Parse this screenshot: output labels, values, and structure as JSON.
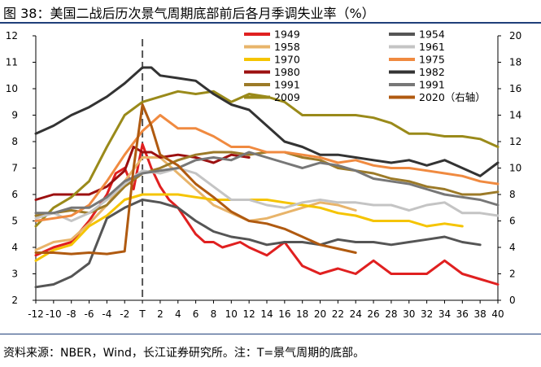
{
  "figure": {
    "title": "图 38：美国二战后历次景气周期底部前后各月季调失业率（%）",
    "source": "资料来源：NBER，Wind，长江证券研究所。注：T=景气周期的底部。"
  },
  "chart_data": {
    "type": "line",
    "x_tick_labels": [
      "-12",
      "-10",
      "-8",
      "-6",
      "-4",
      "-2",
      "T",
      "2",
      "4",
      "6",
      "8",
      "10",
      "12",
      "14",
      "16",
      "18",
      "20",
      "22",
      "24",
      "26",
      "28",
      "30",
      "32",
      "34",
      "36",
      "38",
      "40"
    ],
    "x_range": [
      -12,
      40
    ],
    "y_left": {
      "range": [
        2,
        12
      ],
      "ticks": [
        "2",
        "3",
        "4",
        "5",
        "6",
        "7",
        "8",
        "9",
        "10",
        "11",
        "12"
      ]
    },
    "y_right": {
      "range": [
        0,
        20
      ],
      "ticks": [
        "0",
        "2",
        "4",
        "6",
        "8",
        "10",
        "12",
        "14",
        "16",
        "18",
        "20"
      ]
    },
    "trough_marker_x": 0,
    "series": [
      {
        "name": "1949",
        "color": "#e02020",
        "axis": "left",
        "x": [
          -12,
          -10,
          -8,
          -6,
          -4,
          -3,
          -2,
          -1,
          0,
          1,
          2,
          3,
          4,
          5,
          6,
          7,
          8,
          9,
          10,
          11,
          12,
          14,
          16,
          18,
          20,
          22,
          24,
          26,
          28,
          30,
          32,
          34,
          36,
          38,
          40
        ],
        "y": [
          3.7,
          4.0,
          4.2,
          5.0,
          6.0,
          6.8,
          7.0,
          6.2,
          7.9,
          7.0,
          6.3,
          5.8,
          5.5,
          5.0,
          4.5,
          4.2,
          4.2,
          4.0,
          4.1,
          4.2,
          4.0,
          3.7,
          4.2,
          3.3,
          3.0,
          3.2,
          3.0,
          3.5,
          3.0,
          3.0,
          3.0,
          3.5,
          3.0,
          2.8,
          2.6
        ]
      },
      {
        "name": "1958",
        "color": "#e8b46a",
        "axis": "left",
        "x": [
          -12,
          -10,
          -8,
          -6,
          -4,
          -2,
          0,
          2,
          4,
          6,
          8,
          10,
          12,
          14,
          16,
          18,
          20,
          22,
          24
        ],
        "y": [
          3.9,
          4.2,
          4.3,
          4.9,
          5.6,
          6.5,
          7.4,
          7.4,
          6.8,
          6.2,
          5.6,
          5.3,
          5.0,
          5.1,
          5.3,
          5.5,
          5.7,
          5.6,
          5.4
        ]
      },
      {
        "name": "1970",
        "color": "#f5c400",
        "axis": "left",
        "x": [
          -12,
          -10,
          -8,
          -6,
          -4,
          -2,
          0,
          2,
          4,
          6,
          8,
          10,
          12,
          14,
          16,
          18,
          20,
          22,
          24,
          26,
          28,
          30,
          32,
          34,
          36
        ],
        "y": [
          3.5,
          3.9,
          4.1,
          4.8,
          5.2,
          5.8,
          6.0,
          6.0,
          6.0,
          5.9,
          5.8,
          5.8,
          5.8,
          5.8,
          5.7,
          5.6,
          5.5,
          5.3,
          5.2,
          5.0,
          5.0,
          5.0,
          4.8,
          4.9,
          4.8
        ]
      },
      {
        "name": "1980",
        "color": "#9c1010",
        "axis": "left",
        "x": [
          -12,
          -10,
          -8,
          -6,
          -4,
          -2,
          -1,
          0,
          1,
          2,
          4,
          6,
          8,
          10,
          12
        ],
        "y": [
          5.8,
          6.0,
          6.0,
          6.0,
          6.3,
          6.9,
          7.8,
          7.6,
          7.6,
          7.4,
          7.5,
          7.4,
          7.2,
          7.5,
          7.4
        ]
      },
      {
        "name": "1991",
        "color": "#9c7a28",
        "axis": "left",
        "x": [
          -12,
          -10,
          -8,
          -6,
          -4,
          -2,
          0,
          2,
          4,
          6,
          8,
          10,
          12,
          14,
          16,
          18,
          20,
          22,
          24,
          26,
          28,
          30,
          32,
          34,
          36,
          38,
          40
        ],
        "y": [
          5.2,
          5.3,
          5.4,
          5.3,
          5.6,
          6.3,
          6.8,
          7.0,
          7.3,
          7.5,
          7.6,
          7.6,
          7.5,
          7.6,
          7.6,
          7.4,
          7.3,
          7.0,
          6.9,
          6.8,
          6.6,
          6.5,
          6.3,
          6.2,
          6.0,
          6.0,
          6.1
        ]
      },
      {
        "name": "2009",
        "color": "#9a8a1a",
        "axis": "left",
        "x": [
          -12,
          -10,
          -8,
          -6,
          -4,
          -2,
          0,
          2,
          4,
          6,
          8,
          10,
          12,
          14,
          16,
          18,
          20,
          22,
          24,
          26,
          28,
          30,
          32,
          34,
          36,
          38,
          40
        ],
        "y": [
          4.8,
          5.5,
          5.9,
          6.5,
          7.8,
          9.0,
          9.5,
          9.7,
          9.9,
          9.8,
          9.9,
          9.5,
          9.8,
          9.7,
          9.5,
          9.0,
          9.0,
          9.0,
          9.0,
          8.9,
          8.7,
          8.3,
          8.3,
          8.2,
          8.2,
          8.1,
          7.8
        ]
      },
      {
        "name": "1954",
        "color": "#555555",
        "axis": "left",
        "x": [
          -12,
          -10,
          -8,
          -6,
          -4,
          -2,
          0,
          2,
          4,
          6,
          8,
          10,
          12,
          14,
          16,
          18,
          20,
          22,
          24,
          26,
          28,
          30,
          32,
          34,
          36,
          38
        ],
        "y": [
          2.5,
          2.6,
          2.9,
          3.4,
          5.1,
          5.5,
          5.8,
          5.7,
          5.5,
          5.0,
          4.6,
          4.4,
          4.3,
          4.1,
          4.2,
          4.2,
          4.1,
          4.3,
          4.2,
          4.2,
          4.1,
          4.2,
          4.3,
          4.4,
          4.2,
          4.1
        ]
      },
      {
        "name": "1961",
        "color": "#c4c4c4",
        "axis": "left",
        "x": [
          -12,
          -10,
          -8,
          -6,
          -4,
          -2,
          0,
          2,
          4,
          6,
          8,
          10,
          12,
          14,
          16,
          18,
          20,
          22,
          24,
          26,
          28,
          30,
          32,
          34,
          36,
          38,
          40
        ],
        "y": [
          5.1,
          5.3,
          5.0,
          5.3,
          5.8,
          6.4,
          6.9,
          6.8,
          7.0,
          6.8,
          6.3,
          5.8,
          5.8,
          5.6,
          5.5,
          5.7,
          5.8,
          5.7,
          5.7,
          5.6,
          5.6,
          5.4,
          5.6,
          5.7,
          5.3,
          5.3,
          5.2
        ]
      },
      {
        "name": "1975",
        "color": "#f08a40",
        "axis": "left",
        "x": [
          -12,
          -10,
          -8,
          -6,
          -4,
          -2,
          0,
          2,
          4,
          6,
          8,
          10,
          12,
          14,
          16,
          18,
          20,
          22,
          24,
          26,
          28,
          30,
          32,
          34,
          36,
          38,
          40
        ],
        "y": [
          5.0,
          5.1,
          5.2,
          5.6,
          6.5,
          7.5,
          8.4,
          9.0,
          8.5,
          8.5,
          8.2,
          7.8,
          7.8,
          7.6,
          7.6,
          7.5,
          7.4,
          7.2,
          7.3,
          7.1,
          7.0,
          7.0,
          6.9,
          6.8,
          6.7,
          6.5,
          6.4
        ]
      },
      {
        "name": "1982",
        "color": "#333333",
        "axis": "left",
        "x": [
          -12,
          -10,
          -8,
          -6,
          -4,
          -2,
          0,
          1,
          2,
          4,
          6,
          8,
          10,
          12,
          14,
          16,
          18,
          20,
          22,
          24,
          26,
          28,
          30,
          32,
          34,
          36,
          38,
          40
        ],
        "y": [
          8.3,
          8.6,
          9.0,
          9.3,
          9.7,
          10.2,
          10.8,
          10.8,
          10.5,
          10.4,
          10.3,
          9.8,
          9.4,
          9.2,
          8.6,
          8.0,
          7.8,
          7.5,
          7.5,
          7.4,
          7.3,
          7.2,
          7.3,
          7.1,
          7.3,
          7.0,
          6.7,
          7.2
        ]
      },
      {
        "name": "1991",
        "color": "#777777",
        "axis": "left",
        "x": [
          -12,
          -10,
          -8,
          -6,
          -4,
          -2,
          0,
          2,
          4,
          6,
          8,
          10,
          12,
          14,
          16,
          18,
          20,
          22,
          24,
          26,
          28,
          30,
          32,
          34,
          36,
          38,
          40
        ],
        "y": [
          5.3,
          5.3,
          5.5,
          5.5,
          5.9,
          6.5,
          6.8,
          6.9,
          7.0,
          7.3,
          7.4,
          7.3,
          7.6,
          7.4,
          7.2,
          7.0,
          7.2,
          7.1,
          6.9,
          6.6,
          6.5,
          6.4,
          6.2,
          6.0,
          5.9,
          5.8,
          5.6
        ]
      },
      {
        "name": "2020（右轴）",
        "color": "#b05a10",
        "axis": "right",
        "x": [
          -12,
          -10,
          -8,
          -6,
          -4,
          -2,
          -1,
          0,
          1,
          2,
          4,
          6,
          8,
          10,
          12,
          14,
          16,
          18,
          20,
          22,
          24
        ],
        "y": [
          3.6,
          3.6,
          3.5,
          3.6,
          3.5,
          3.7,
          10.0,
          14.8,
          13.2,
          11.0,
          10.2,
          8.8,
          7.8,
          6.7,
          6.0,
          5.8,
          5.4,
          4.8,
          4.2,
          3.9,
          3.6
        ]
      }
    ]
  }
}
